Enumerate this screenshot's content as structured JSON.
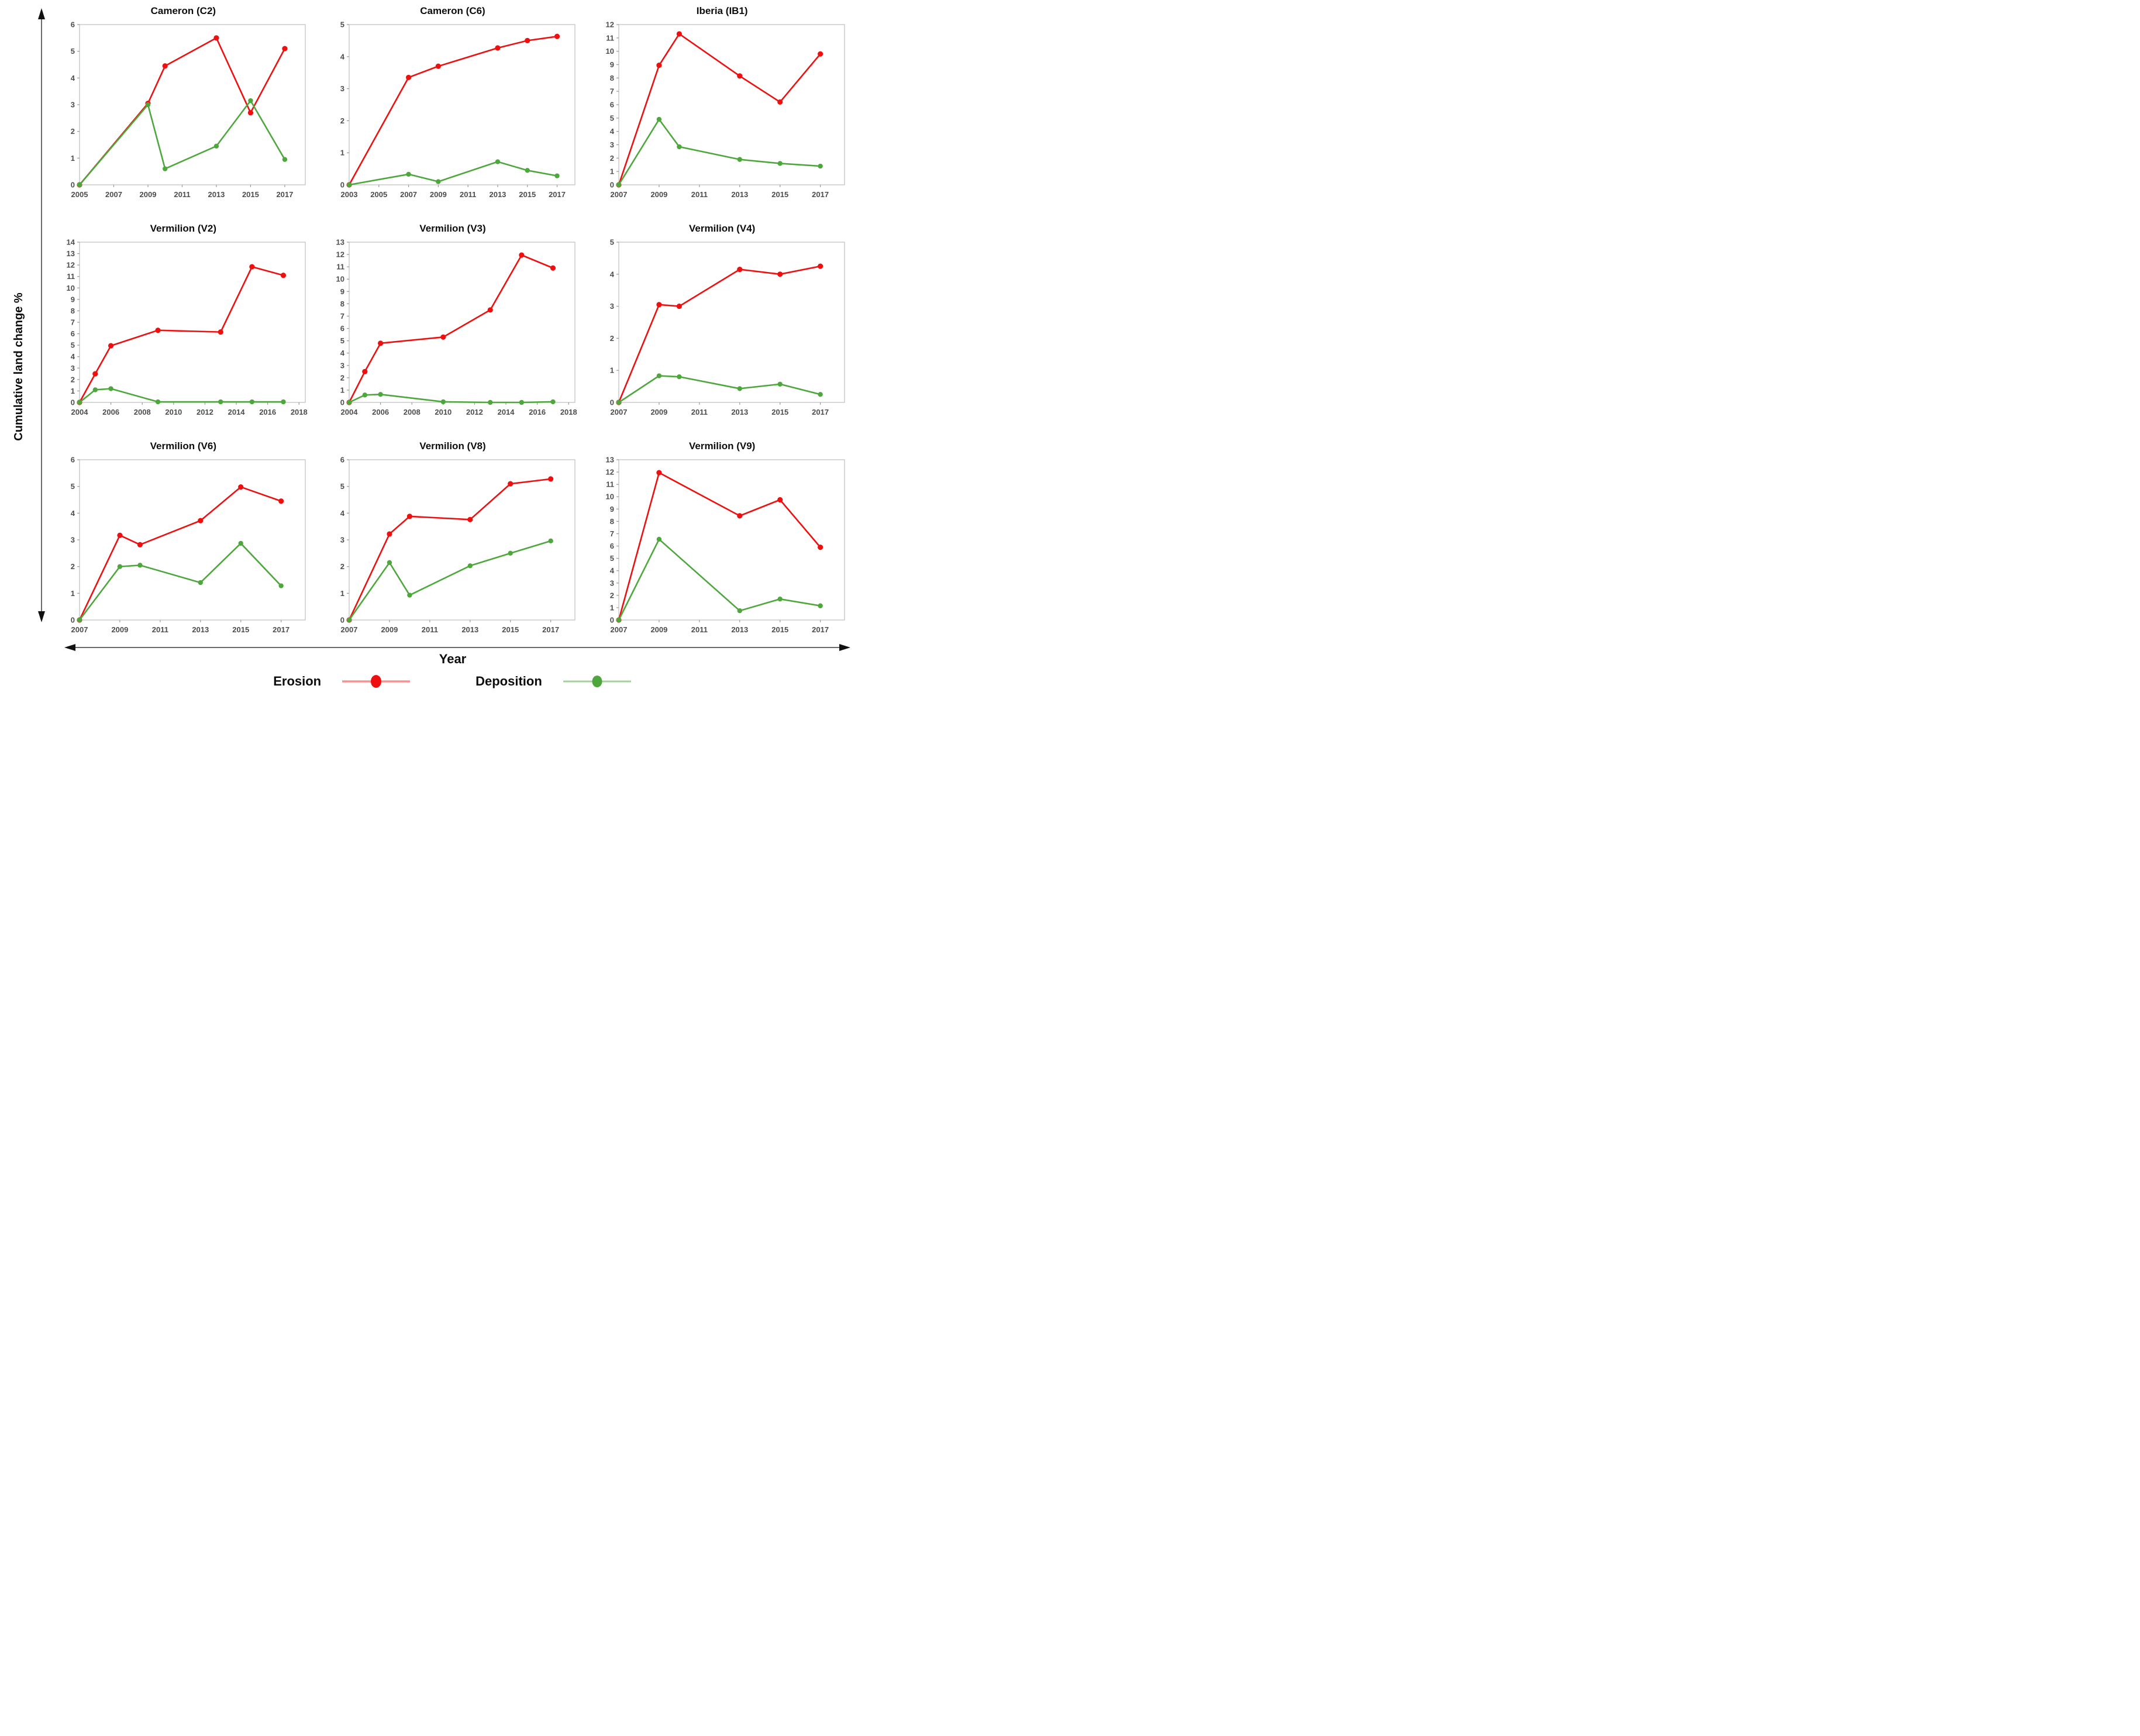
{
  "figure": {
    "y_axis_label": "Cumulative land change %",
    "x_axis_label": "Year",
    "legend": {
      "erosion_label": "Erosion",
      "deposition_label": "Deposition"
    },
    "colors": {
      "erosion": "#EF0F0F",
      "deposition": "#4EA73C",
      "tick_label": "#4d4d4d",
      "plot_border": "#c3c3c3",
      "arrow": "#1a1a1a"
    }
  },
  "chart_data": [
    {
      "id": "cameron-c2",
      "title": "Cameron (C2)",
      "type": "line",
      "xlabel": "Year",
      "ylabel": "Cumulative land change %",
      "xlim": [
        2005,
        2018.2
      ],
      "ylim": [
        0,
        6
      ],
      "xticks": [
        2005,
        2007,
        2009,
        2011,
        2013,
        2015,
        2017
      ],
      "yticks": [
        0,
        1,
        2,
        3,
        4,
        5,
        6
      ],
      "grid": false,
      "series": [
        {
          "name": "Erosion",
          "color_key": "erosion",
          "points": [
            [
              2005,
              0
            ],
            [
              2009,
              3.05
            ],
            [
              2010,
              4.45
            ],
            [
              2013,
              5.5
            ],
            [
              2015,
              2.7
            ],
            [
              2017,
              5.1
            ]
          ]
        },
        {
          "name": "Deposition",
          "color_key": "deposition",
          "points": [
            [
              2005,
              0
            ],
            [
              2009,
              3.0
            ],
            [
              2010,
              0.6
            ],
            [
              2013,
              1.45
            ],
            [
              2015,
              3.15
            ],
            [
              2017,
              0.95
            ]
          ]
        }
      ]
    },
    {
      "id": "cameron-c6",
      "title": "Cameron (C6)",
      "type": "line",
      "xlabel": "Year",
      "ylabel": "Cumulative land change %",
      "xlim": [
        2003,
        2018.2
      ],
      "ylim": [
        0,
        5
      ],
      "xticks": [
        2003,
        2005,
        2007,
        2009,
        2011,
        2013,
        2015,
        2017
      ],
      "yticks": [
        0,
        1,
        2,
        3,
        4,
        5
      ],
      "grid": false,
      "series": [
        {
          "name": "Erosion",
          "color_key": "erosion",
          "points": [
            [
              2003,
              0
            ],
            [
              2007,
              3.35
            ],
            [
              2009,
              3.7
            ],
            [
              2013,
              4.27
            ],
            [
              2015,
              4.5
            ],
            [
              2017,
              4.63
            ]
          ]
        },
        {
          "name": "Deposition",
          "color_key": "deposition",
          "points": [
            [
              2003,
              0
            ],
            [
              2007,
              0.33
            ],
            [
              2009,
              0.1
            ],
            [
              2013,
              0.72
            ],
            [
              2015,
              0.45
            ],
            [
              2017,
              0.28
            ]
          ]
        }
      ]
    },
    {
      "id": "iberia-ib1",
      "title": "Iberia (IB1)",
      "type": "line",
      "xlabel": "Year",
      "ylabel": "Cumulative land change %",
      "xlim": [
        2007,
        2018.2
      ],
      "ylim": [
        0,
        12
      ],
      "xticks": [
        2007,
        2009,
        2011,
        2013,
        2015,
        2017
      ],
      "yticks": [
        0,
        1,
        2,
        3,
        4,
        5,
        6,
        7,
        8,
        9,
        10,
        11,
        12
      ],
      "grid": false,
      "series": [
        {
          "name": "Erosion",
          "color_key": "erosion",
          "points": [
            [
              2007,
              0
            ],
            [
              2009,
              8.95
            ],
            [
              2010,
              11.3
            ],
            [
              2013,
              8.15
            ],
            [
              2015,
              6.2
            ],
            [
              2017,
              9.8
            ]
          ]
        },
        {
          "name": "Deposition",
          "color_key": "deposition",
          "points": [
            [
              2007,
              0
            ],
            [
              2009,
              4.9
            ],
            [
              2010,
              2.85
            ],
            [
              2013,
              1.9
            ],
            [
              2015,
              1.6
            ],
            [
              2017,
              1.4
            ]
          ]
        }
      ]
    },
    {
      "id": "vermilion-v2",
      "title": "Vermilion (V2)",
      "type": "line",
      "xlabel": "Year",
      "ylabel": "Cumulative land change %",
      "xlim": [
        2004,
        2018.4
      ],
      "ylim": [
        0,
        14
      ],
      "xticks": [
        2004,
        2006,
        2008,
        2010,
        2012,
        2014,
        2016,
        2018
      ],
      "yticks": [
        0,
        1,
        2,
        3,
        4,
        5,
        6,
        7,
        8,
        9,
        10,
        11,
        12,
        13,
        14
      ],
      "grid": false,
      "series": [
        {
          "name": "Erosion",
          "color_key": "erosion",
          "points": [
            [
              2004,
              0
            ],
            [
              2005,
              2.5
            ],
            [
              2006,
              4.95
            ],
            [
              2009,
              6.3
            ],
            [
              2013,
              6.15
            ],
            [
              2015,
              11.85
            ],
            [
              2017,
              11.1
            ]
          ]
        },
        {
          "name": "Deposition",
          "color_key": "deposition",
          "points": [
            [
              2004,
              0
            ],
            [
              2005,
              1.1
            ],
            [
              2006,
              1.2
            ],
            [
              2009,
              0.05
            ],
            [
              2013,
              0.05
            ],
            [
              2015,
              0.05
            ],
            [
              2017,
              0.05
            ]
          ]
        }
      ]
    },
    {
      "id": "vermilion-v3",
      "title": "Vermilion (V3)",
      "type": "line",
      "xlabel": "Year",
      "ylabel": "Cumulative land change %",
      "xlim": [
        2004,
        2018.4
      ],
      "ylim": [
        0,
        13
      ],
      "xticks": [
        2004,
        2006,
        2008,
        2010,
        2012,
        2014,
        2016,
        2018
      ],
      "yticks": [
        0,
        1,
        2,
        3,
        4,
        5,
        6,
        7,
        8,
        9,
        10,
        11,
        12,
        13
      ],
      "grid": false,
      "series": [
        {
          "name": "Erosion",
          "color_key": "erosion",
          "points": [
            [
              2004,
              0
            ],
            [
              2005,
              2.5
            ],
            [
              2006,
              4.8
            ],
            [
              2010,
              5.3
            ],
            [
              2013,
              7.5
            ],
            [
              2015,
              11.95
            ],
            [
              2017,
              10.9
            ]
          ]
        },
        {
          "name": "Deposition",
          "color_key": "deposition",
          "points": [
            [
              2004,
              0
            ],
            [
              2005,
              0.6
            ],
            [
              2006,
              0.65
            ],
            [
              2010,
              0.05
            ],
            [
              2013,
              0.0
            ],
            [
              2015,
              0.0
            ],
            [
              2017,
              0.05
            ]
          ]
        }
      ]
    },
    {
      "id": "vermilion-v4",
      "title": "Vermilion (V4)",
      "type": "line",
      "xlabel": "Year",
      "ylabel": "Cumulative land change %",
      "xlim": [
        2007,
        2018.2
      ],
      "ylim": [
        0,
        5
      ],
      "xticks": [
        2007,
        2009,
        2011,
        2013,
        2015,
        2017
      ],
      "yticks": [
        0,
        1,
        2,
        3,
        4,
        5
      ],
      "grid": false,
      "series": [
        {
          "name": "Erosion",
          "color_key": "erosion",
          "points": [
            [
              2007,
              0
            ],
            [
              2009,
              3.05
            ],
            [
              2010,
              3.0
            ],
            [
              2013,
              4.15
            ],
            [
              2015,
              4.0
            ],
            [
              2017,
              4.25
            ]
          ]
        },
        {
          "name": "Deposition",
          "color_key": "deposition",
          "points": [
            [
              2007,
              0
            ],
            [
              2009,
              0.83
            ],
            [
              2010,
              0.8
            ],
            [
              2013,
              0.43
            ],
            [
              2015,
              0.57
            ],
            [
              2017,
              0.25
            ]
          ]
        }
      ]
    },
    {
      "id": "vermilion-v6",
      "title": "Vermilion (V6)",
      "type": "line",
      "xlabel": "Year",
      "ylabel": "Cumulative land change %",
      "xlim": [
        2007,
        2018.2
      ],
      "ylim": [
        0,
        6
      ],
      "xticks": [
        2007,
        2009,
        2011,
        2013,
        2015,
        2017
      ],
      "yticks": [
        0,
        1,
        2,
        3,
        4,
        5,
        6
      ],
      "grid": false,
      "series": [
        {
          "name": "Erosion",
          "color_key": "erosion",
          "points": [
            [
              2007,
              0
            ],
            [
              2009,
              3.17
            ],
            [
              2010,
              2.82
            ],
            [
              2013,
              3.72
            ],
            [
              2015,
              4.98
            ],
            [
              2017,
              4.45
            ]
          ]
        },
        {
          "name": "Deposition",
          "color_key": "deposition",
          "points": [
            [
              2007,
              0
            ],
            [
              2009,
              2.0
            ],
            [
              2010,
              2.05
            ],
            [
              2013,
              1.4
            ],
            [
              2015,
              2.87
            ],
            [
              2017,
              1.28
            ]
          ]
        }
      ]
    },
    {
      "id": "vermilion-v8",
      "title": "Vermilion (V8)",
      "type": "line",
      "xlabel": "Year",
      "ylabel": "Cumulative land change %",
      "xlim": [
        2007,
        2018.2
      ],
      "ylim": [
        0,
        6
      ],
      "xticks": [
        2007,
        2009,
        2011,
        2013,
        2015,
        2017
      ],
      "yticks": [
        0,
        1,
        2,
        3,
        4,
        5,
        6
      ],
      "grid": false,
      "series": [
        {
          "name": "Erosion",
          "color_key": "erosion",
          "points": [
            [
              2007,
              0
            ],
            [
              2009,
              3.22
            ],
            [
              2010,
              3.88
            ],
            [
              2013,
              3.76
            ],
            [
              2015,
              5.1
            ],
            [
              2017,
              5.28
            ]
          ]
        },
        {
          "name": "Deposition",
          "color_key": "deposition",
          "points": [
            [
              2007,
              0
            ],
            [
              2009,
              2.15
            ],
            [
              2010,
              0.93
            ],
            [
              2013,
              2.03
            ],
            [
              2015,
              2.5
            ],
            [
              2017,
              2.96
            ]
          ]
        }
      ]
    },
    {
      "id": "vermilion-v9",
      "title": "Vermilion (V9)",
      "type": "line",
      "xlabel": "Year",
      "ylabel": "Cumulative land change %",
      "xlim": [
        2007,
        2018.2
      ],
      "ylim": [
        0,
        13
      ],
      "xticks": [
        2007,
        2009,
        2011,
        2013,
        2015,
        2017
      ],
      "yticks": [
        0,
        1,
        2,
        3,
        4,
        5,
        6,
        7,
        8,
        9,
        10,
        11,
        12,
        13
      ],
      "grid": false,
      "series": [
        {
          "name": "Erosion",
          "color_key": "erosion",
          "points": [
            [
              2007,
              0
            ],
            [
              2009,
              11.95
            ],
            [
              2013,
              8.45
            ],
            [
              2015,
              9.75
            ],
            [
              2017,
              5.9
            ]
          ]
        },
        {
          "name": "Deposition",
          "color_key": "deposition",
          "points": [
            [
              2007,
              0
            ],
            [
              2009,
              6.55
            ],
            [
              2013,
              0.75
            ],
            [
              2015,
              1.7
            ],
            [
              2017,
              1.15
            ]
          ]
        }
      ]
    }
  ]
}
